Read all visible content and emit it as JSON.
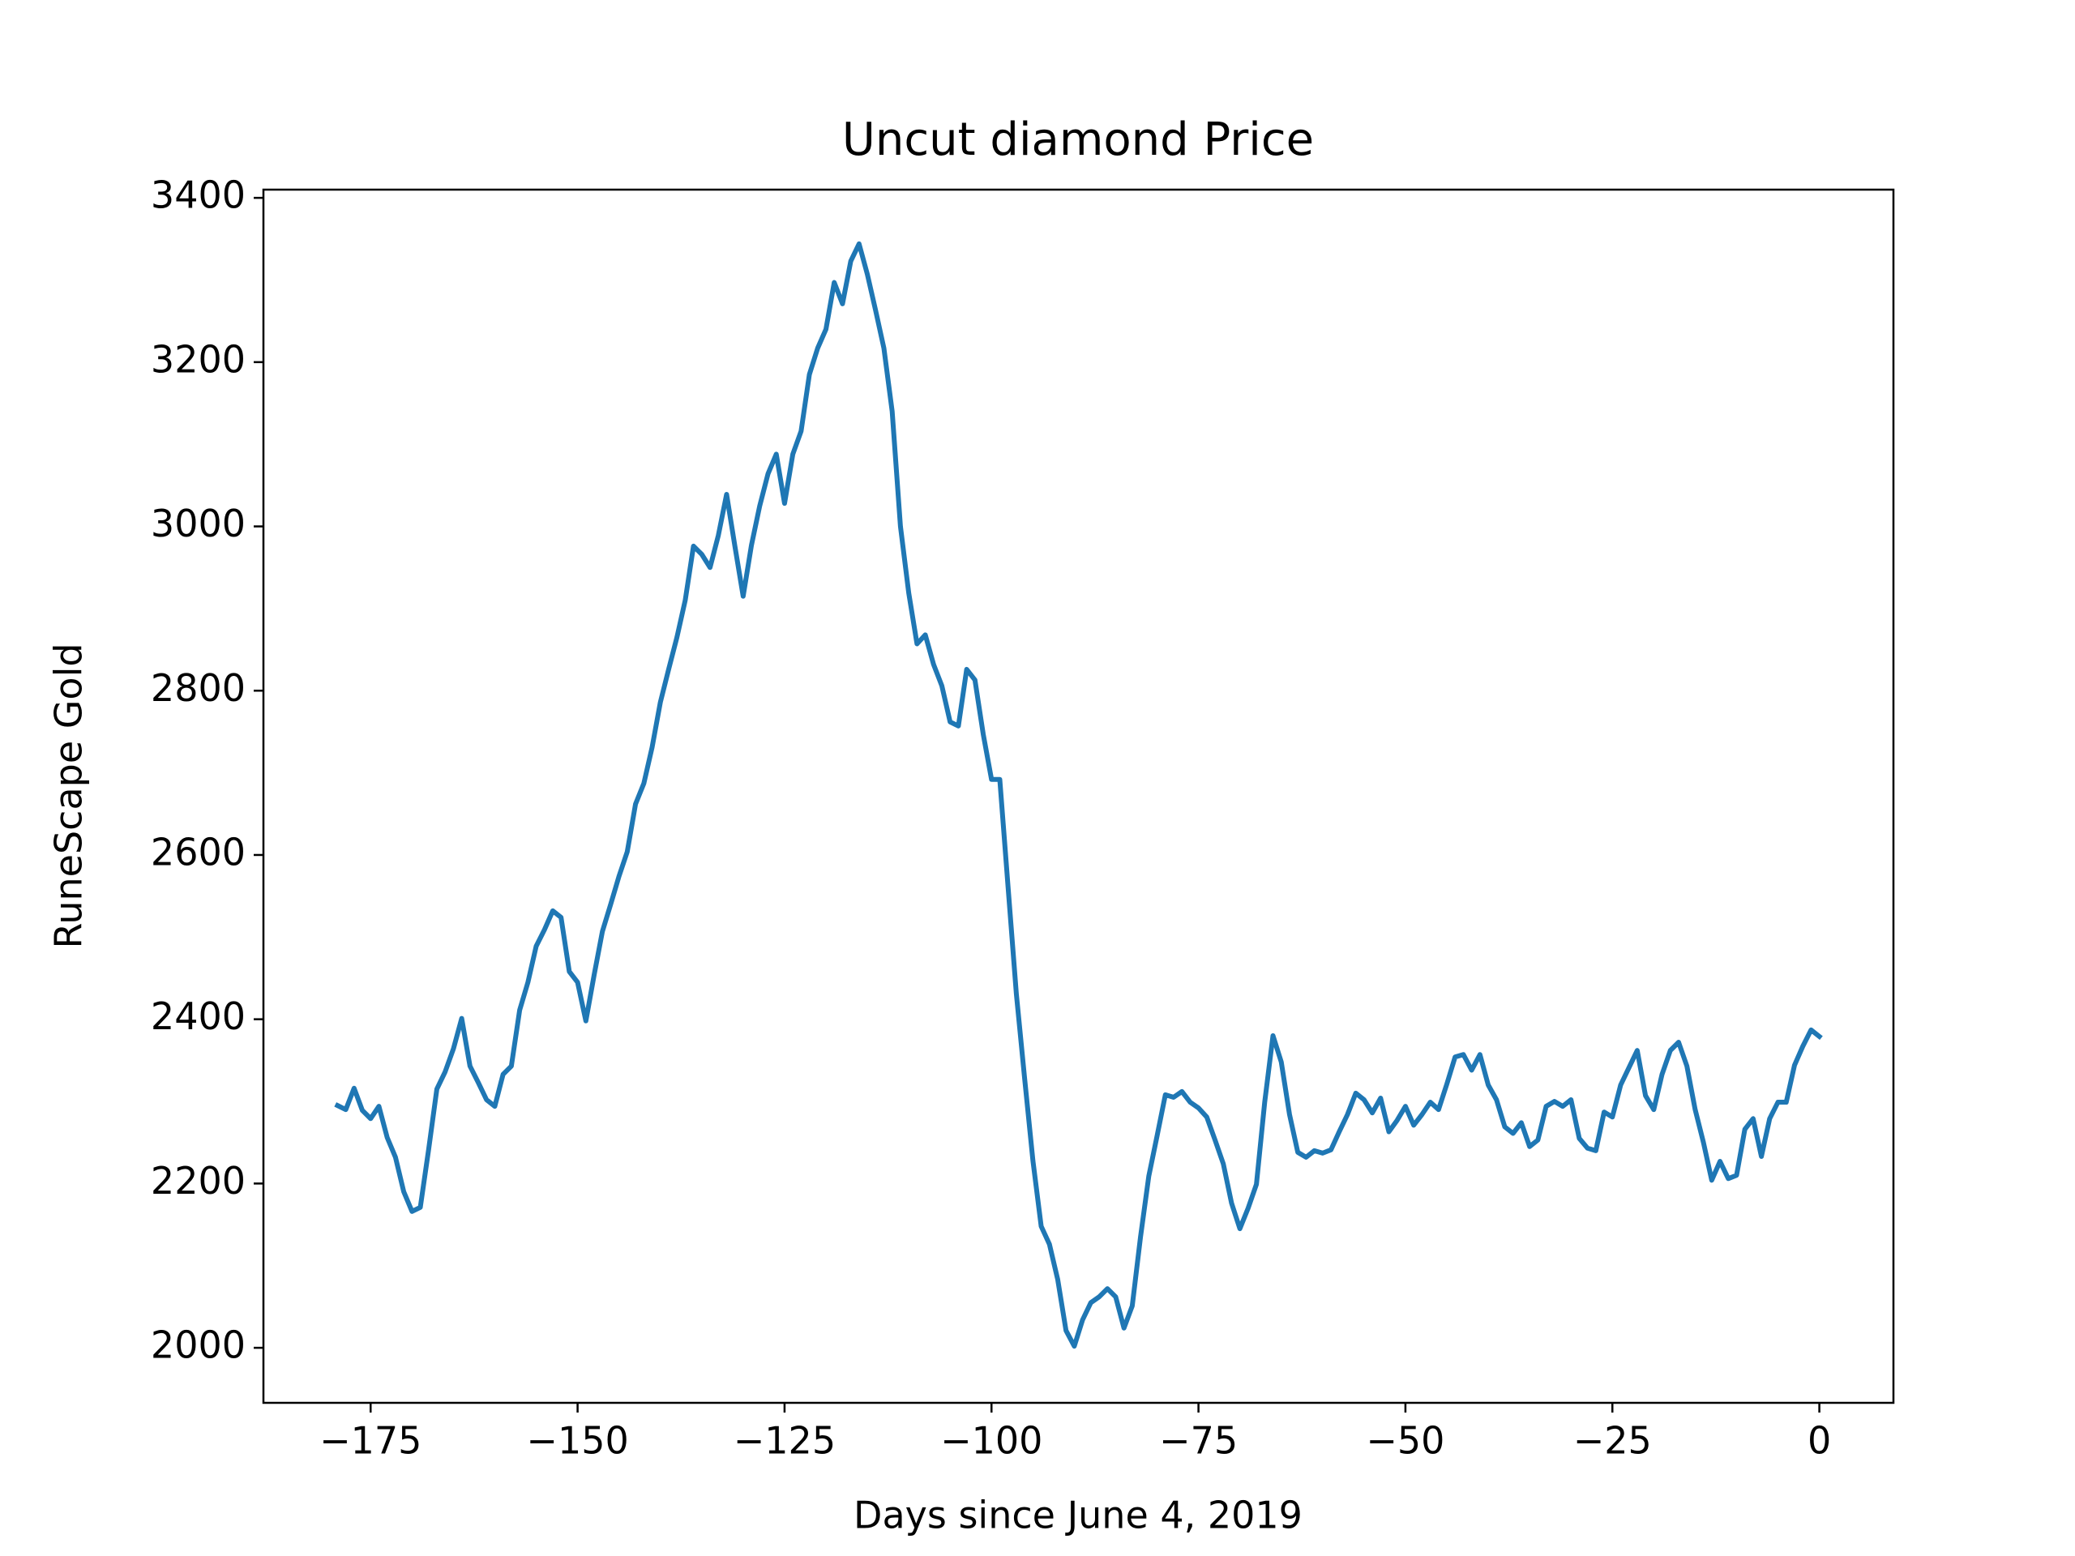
{
  "chart_data": {
    "type": "line",
    "title": "Uncut diamond Price",
    "x_label": "Days since June 4, 2019",
    "y_label": "RuneScape Gold",
    "x": [
      -179,
      -178,
      -177,
      -176,
      -175,
      -174,
      -173,
      -172,
      -171,
      -170,
      -169,
      -168,
      -167,
      -166,
      -165,
      -164,
      -163,
      -162,
      -161,
      -160,
      -159,
      -158,
      -157,
      -156,
      -155,
      -154,
      -153,
      -152,
      -151,
      -150,
      -149,
      -148,
      -147,
      -146,
      -145,
      -144,
      -143,
      -142,
      -141,
      -140,
      -139,
      -138,
      -137,
      -136,
      -135,
      -134,
      -133,
      -132,
      -131,
      -130,
      -129,
      -128,
      -127,
      -126,
      -125,
      -124,
      -123,
      -122,
      -121,
      -120,
      -119,
      -118,
      -117,
      -116,
      -115,
      -114,
      -113,
      -112,
      -111,
      -110,
      -109,
      -108,
      -107,
      -106,
      -105,
      -104,
      -103,
      -102,
      -101,
      -100,
      -99,
      -98,
      -97,
      -96,
      -95,
      -94,
      -93,
      -92,
      -91,
      -90,
      -89,
      -88,
      -87,
      -86,
      -85,
      -84,
      -83,
      -82,
      -81,
      -80,
      -79,
      -78,
      -77,
      -76,
      -75,
      -74,
      -73,
      -72,
      -71,
      -70,
      -69,
      -68,
      -67,
      -66,
      -65,
      -64,
      -63,
      -62,
      -61,
      -60,
      -59,
      -58,
      -57,
      -56,
      -55,
      -54,
      -53,
      -52,
      -51,
      -50,
      -49,
      -48,
      -47,
      -46,
      -45,
      -44,
      -43,
      -42,
      -41,
      -40,
      -39,
      -38,
      -37,
      -36,
      -35,
      -34,
      -33,
      -32,
      -31,
      -30,
      -29,
      -28,
      -27,
      -26,
      -25,
      -24,
      -23,
      -22,
      -21,
      -20,
      -19,
      -18,
      -17,
      -16,
      -15,
      -14,
      -13,
      -12,
      -11,
      -10,
      -9,
      -8,
      -7,
      -6,
      -5,
      -4,
      -3,
      -2,
      -1,
      0
    ],
    "series": [
      {
        "color": "#1f77b4",
        "values": [
          2295,
          2290,
          2316,
          2289,
          2279,
          2294,
          2256,
          2232,
          2190,
          2166,
          2171,
          2241,
          2315,
          2336,
          2364,
          2401,
          2343,
          2323,
          2302,
          2294,
          2333,
          2343,
          2411,
          2445,
          2489,
          2509,
          2532,
          2524,
          2458,
          2445,
          2398,
          2454,
          2507,
          2540,
          2574,
          2604,
          2662,
          2687,
          2731,
          2786,
          2826,
          2865,
          2910,
          2976,
          2966,
          2950,
          2989,
          3039,
          2976,
          2915,
          2977,
          3025,
          3064,
          3088,
          3028,
          3088,
          3116,
          3185,
          3217,
          3240,
          3297,
          3271,
          3323,
          3344,
          3307,
          3263,
          3217,
          3140,
          3000,
          2919,
          2857,
          2868,
          2832,
          2806,
          2762,
          2757,
          2826,
          2813,
          2747,
          2692,
          2692,
          2561,
          2431,
          2328,
          2228,
          2148,
          2126,
          2083,
          2021,
          2002,
          2034,
          2055,
          2062,
          2072,
          2062,
          2024,
          2051,
          2135,
          2209,
          2258,
          2308,
          2305,
          2312,
          2299,
          2292,
          2281,
          2253,
          2224,
          2176,
          2145,
          2170,
          2199,
          2299,
          2380,
          2348,
          2284,
          2238,
          2232,
          2240,
          2237,
          2241,
          2263,
          2284,
          2310,
          2302,
          2286,
          2304,
          2263,
          2277,
          2294,
          2271,
          2284,
          2299,
          2290,
          2321,
          2354,
          2357,
          2338,
          2357,
          2320,
          2302,
          2269,
          2261,
          2274,
          2245,
          2253,
          2294,
          2300,
          2294,
          2302,
          2255,
          2243,
          2240,
          2287,
          2281,
          2320,
          2341,
          2362,
          2307,
          2290,
          2333,
          2362,
          2372,
          2343,
          2290,
          2250,
          2204,
          2227,
          2206,
          2210,
          2266,
          2279,
          2233,
          2279,
          2299,
          2299,
          2344,
          2367,
          2387,
          2379
        ]
      }
    ],
    "xlim": [
      -187.95,
      8.95
    ],
    "ylim": [
      1933,
      3410
    ],
    "xticks": [
      {
        "value": -175,
        "label": "−175"
      },
      {
        "value": -150,
        "label": "−150"
      },
      {
        "value": -125,
        "label": "−125"
      },
      {
        "value": -100,
        "label": "−100"
      },
      {
        "value": -75,
        "label": "−75"
      },
      {
        "value": -50,
        "label": "−50"
      },
      {
        "value": -25,
        "label": "−25"
      },
      0
    ],
    "yticks": [
      2000,
      2200,
      2400,
      2600,
      2800,
      3000,
      3200,
      3400
    ],
    "grid": false
  }
}
